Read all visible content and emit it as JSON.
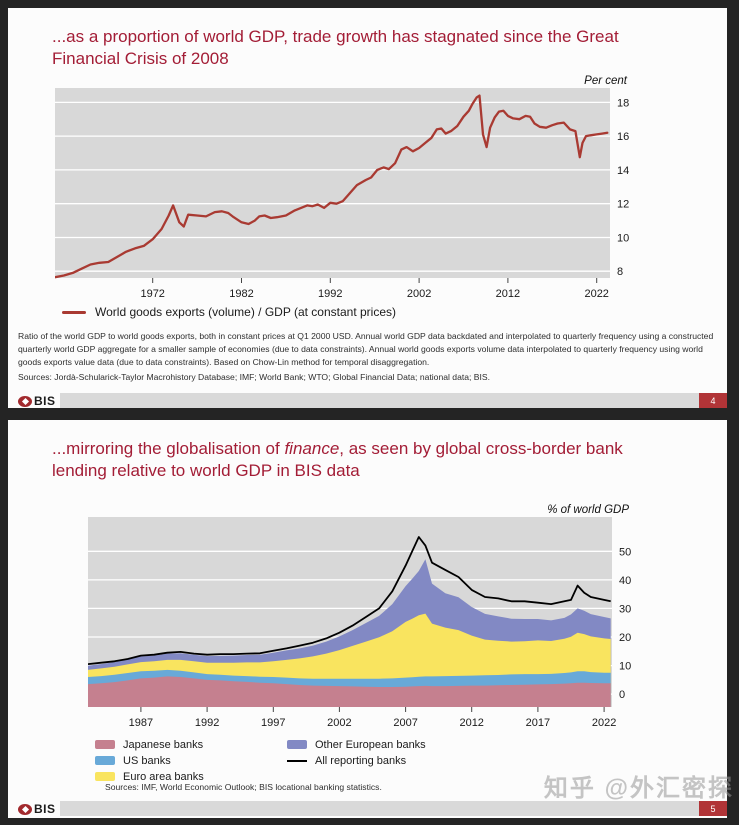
{
  "page": {
    "watermark": "知乎 @外汇密探"
  },
  "colors": {
    "panel": "#d8d8d8",
    "grid": "#ffffff",
    "title_red": "#a31d36",
    "trade_line": "#a93a32",
    "japanese": "#c5808f",
    "us": "#68a9d8",
    "euro": "#f9e45f",
    "other_eu": "#8289c4",
    "all": "#000000",
    "page_box": "#b13437"
  },
  "slide1": {
    "title": "...as a proportion of world GDP, trade growth has stagnated since the Great Financial Crisis of 2008",
    "unit_label": "Per cent",
    "legend_label": "World goods exports (volume) / GDP (at constant prices)",
    "footnote": "Ratio of the world GDP to world goods exports, both in constant prices at Q1 2000 USD. Annual world GDP data backdated and interpolated to quarterly frequency using a constructed quarterly world GDP aggregate for a smaller sample of economies (due to data constraints). Annual world goods exports volume data interpolated to quarterly frequency using world goods exports value data (due to data constraints). Based on Chow-Lin method for temporal disaggregation.",
    "sources": "Sources: Jordà-Schularick-Taylor Macrohistory Database; IMF; World Bank; WTO; Global Financial Data; national data; BIS.",
    "brand": "BIS",
    "page_number": "4"
  },
  "slide2": {
    "title_pre": "...mirroring the globalisation of ",
    "title_italic": "finance",
    "title_post": ", as seen by global cross-border bank lending relative to world GDP in BIS data",
    "unit_label": "% of world GDP",
    "legend": {
      "japanese": "Japanese banks",
      "us": "US banks",
      "euro": "Euro area banks",
      "other_eu": "Other European banks",
      "all": "All reporting banks"
    },
    "sources": "Sources: IMF, World Economic Outlook; BIS locational banking statistics.",
    "brand": "BIS",
    "page_number": "5"
  },
  "chart_data": [
    {
      "type": "line",
      "title": "World goods exports (volume) / GDP (at constant prices)",
      "ylabel": "Per cent",
      "legend_position": "bottom",
      "grid": true,
      "x_ticks": [
        1972,
        1982,
        1992,
        2002,
        2012,
        2022
      ],
      "y_ticks": [
        8,
        10,
        12,
        14,
        16,
        18
      ],
      "xlim": [
        1961,
        2023.5
      ],
      "ylim": [
        7.6,
        18.85
      ],
      "series": [
        {
          "name": "World goods exports (volume) / GDP (at constant prices)",
          "color": "#a93a32",
          "x": [
            1961,
            1962,
            1963,
            1964,
            1965,
            1966,
            1967,
            1968,
            1969,
            1970,
            1971,
            1972,
            1973,
            1973.8,
            1974.3,
            1975,
            1975.5,
            1976,
            1977,
            1978,
            1979,
            1979.8,
            1980.5,
            1981,
            1982,
            1982.8,
            1983.5,
            1984,
            1984.6,
            1985.3,
            1986,
            1987,
            1988,
            1988.7,
            1989.4,
            1990,
            1990.6,
            1991.3,
            1992,
            1992.7,
            1993.4,
            1994,
            1995,
            1996,
            1996.6,
            1997.3,
            1998,
            1998.6,
            1999.3,
            2000,
            2000.6,
            2001.3,
            2002,
            2002.7,
            2003.4,
            2004,
            2004.5,
            2005,
            2005.6,
            2006.3,
            2007,
            2007.6,
            2008,
            2008.5,
            2008.8,
            2009.2,
            2009.6,
            2010,
            2010.5,
            2011,
            2011.5,
            2012,
            2012.6,
            2013.3,
            2014,
            2014.5,
            2015,
            2015.6,
            2016.3,
            2017,
            2017.6,
            2018.3,
            2019,
            2019.6,
            2020.1,
            2020.4,
            2020.8,
            2021.3,
            2022,
            2022.6,
            2023.2
          ],
          "y": [
            7.65,
            7.75,
            7.9,
            8.15,
            8.4,
            8.5,
            8.55,
            8.85,
            9.15,
            9.35,
            9.5,
            9.9,
            10.5,
            11.3,
            11.9,
            10.9,
            10.65,
            11.35,
            11.3,
            11.25,
            11.5,
            11.55,
            11.45,
            11.25,
            10.9,
            10.8,
            11.0,
            11.25,
            11.3,
            11.15,
            11.2,
            11.3,
            11.6,
            11.75,
            11.9,
            11.85,
            11.95,
            11.75,
            12.05,
            12.0,
            12.15,
            12.5,
            13.1,
            13.4,
            13.55,
            14.0,
            14.15,
            14.05,
            14.4,
            15.2,
            15.35,
            15.1,
            15.3,
            15.6,
            15.9,
            16.4,
            16.45,
            16.15,
            16.3,
            16.6,
            17.15,
            17.5,
            17.9,
            18.3,
            18.4,
            16.1,
            15.35,
            16.5,
            17.1,
            17.45,
            17.5,
            17.2,
            17.05,
            17.0,
            17.2,
            17.15,
            16.75,
            16.55,
            16.5,
            16.65,
            16.75,
            16.8,
            16.4,
            16.3,
            14.75,
            15.6,
            16.0,
            16.05,
            16.1,
            16.15,
            16.2
          ]
        }
      ]
    },
    {
      "type": "area",
      "stacked": true,
      "title": "Global cross-border bank lending relative to world GDP",
      "ylabel": "% of world GDP",
      "legend_position": "bottom",
      "grid": true,
      "x_ticks": [
        1987,
        1992,
        1997,
        2002,
        2007,
        2012,
        2017,
        2022
      ],
      "y_ticks": [
        0,
        10,
        20,
        30,
        40,
        50
      ],
      "xlim": [
        1983,
        2022.6
      ],
      "ylim": [
        -4.5,
        62
      ],
      "x": [
        1983,
        1984,
        1985,
        1986,
        1987,
        1988,
        1989,
        1990,
        1991,
        1992,
        1993,
        1994,
        1995,
        1996,
        1997,
        1998,
        1999,
        2000,
        2001,
        2002,
        2003,
        2004,
        2005,
        2006,
        2007,
        2007.5,
        2008,
        2008.5,
        2009,
        2010,
        2011,
        2012,
        2013,
        2014,
        2015,
        2016,
        2017,
        2018,
        2019,
        2019.5,
        2020,
        2020.5,
        2021,
        2022,
        2022.5
      ],
      "series": [
        {
          "name": "Japanese banks",
          "color": "#c5808f",
          "values": [
            3.5,
            3.8,
            4.2,
            4.8,
            5.5,
            5.8,
            6.2,
            6.0,
            5.5,
            5.0,
            4.8,
            4.5,
            4.3,
            4.0,
            3.8,
            3.5,
            3.2,
            3.0,
            2.9,
            2.8,
            2.7,
            2.6,
            2.5,
            2.5,
            2.6,
            2.7,
            2.8,
            2.9,
            2.8,
            2.8,
            2.9,
            3.0,
            3.0,
            3.1,
            3.2,
            3.3,
            3.4,
            3.5,
            3.7,
            3.8,
            4.0,
            4.0,
            3.9,
            3.8,
            3.8
          ]
        },
        {
          "name": "US banks",
          "color": "#68a9d8",
          "values": [
            2.5,
            2.5,
            2.6,
            2.6,
            2.5,
            2.4,
            2.3,
            2.2,
            2.1,
            2.0,
            2.0,
            2.0,
            2.0,
            2.1,
            2.2,
            2.3,
            2.3,
            2.4,
            2.5,
            2.6,
            2.7,
            2.8,
            2.9,
            3.0,
            3.2,
            3.2,
            3.3,
            3.3,
            3.4,
            3.5,
            3.5,
            3.5,
            3.6,
            3.6,
            3.7,
            3.7,
            3.6,
            3.6,
            3.7,
            3.8,
            4.0,
            4.0,
            3.8,
            3.7,
            3.7
          ]
        },
        {
          "name": "Euro area banks",
          "color": "#f9e45f",
          "values": [
            2.5,
            2.7,
            2.8,
            3.0,
            3.2,
            3.3,
            3.5,
            3.8,
            3.9,
            4.0,
            4.2,
            4.5,
            4.8,
            5.0,
            5.5,
            6.2,
            7.0,
            7.8,
            8.8,
            10.0,
            11.5,
            13.0,
            14.5,
            16.5,
            19.5,
            20.5,
            21.5,
            22.0,
            18.5,
            17.0,
            16.0,
            14.0,
            12.5,
            12.0,
            11.5,
            11.5,
            11.8,
            11.5,
            12.0,
            12.5,
            13.5,
            13.0,
            12.5,
            12.0,
            11.8
          ]
        },
        {
          "name": "Other European banks",
          "color": "#8289c4",
          "values": [
            1.5,
            1.5,
            1.6,
            1.8,
            2.0,
            2.0,
            2.2,
            2.3,
            2.3,
            2.3,
            2.4,
            2.5,
            2.6,
            2.7,
            3.0,
            3.3,
            3.5,
            3.8,
            4.2,
            4.8,
            5.5,
            6.5,
            7.5,
            9.5,
            12.5,
            14.0,
            15.5,
            19.0,
            14.0,
            12.0,
            11.5,
            10.0,
            9.0,
            8.5,
            8.0,
            7.8,
            7.5,
            7.2,
            7.3,
            7.8,
            8.5,
            8.2,
            7.8,
            7.5,
            7.2
          ]
        },
        {
          "name": "All reporting banks",
          "color": "#000000",
          "type": "line",
          "values": [
            10.5,
            11.0,
            11.5,
            12.3,
            13.5,
            13.8,
            14.5,
            14.8,
            14.2,
            13.8,
            14.0,
            14.0,
            14.2,
            14.3,
            15.2,
            16.0,
            17.0,
            18.0,
            19.5,
            21.5,
            24.0,
            27.0,
            30.0,
            36.0,
            45.0,
            50.0,
            55.0,
            52.0,
            46.0,
            43.5,
            41.0,
            36.5,
            34.0,
            33.5,
            32.5,
            32.5,
            32.0,
            31.5,
            32.5,
            33.0,
            38.0,
            35.5,
            34.0,
            33.0,
            32.5
          ]
        }
      ]
    }
  ]
}
